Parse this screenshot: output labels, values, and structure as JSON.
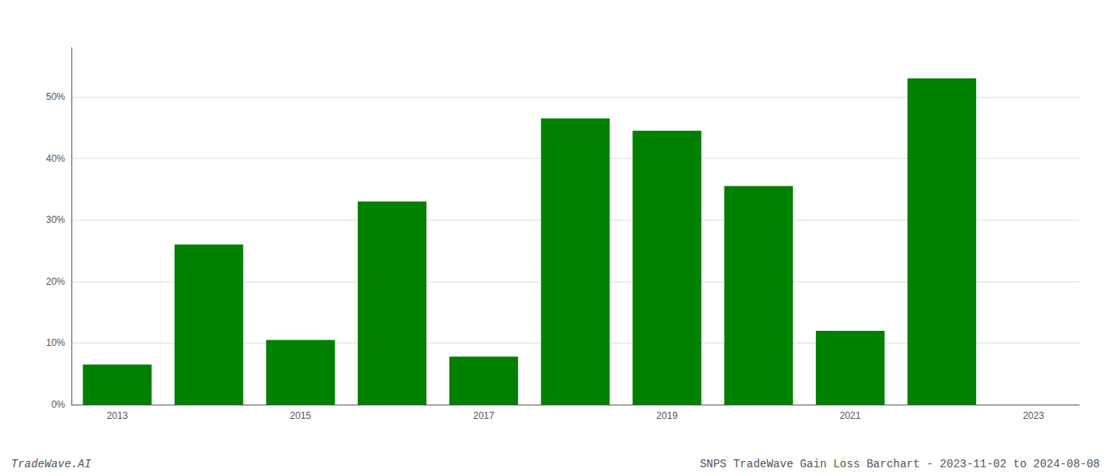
{
  "chart_data": {
    "type": "bar",
    "categories": [
      "2013",
      null,
      "2015",
      null,
      "2017",
      null,
      "2019",
      null,
      "2021",
      null,
      "2023"
    ],
    "values": [
      6.5,
      26.0,
      10.5,
      33.0,
      7.8,
      46.5,
      44.5,
      35.5,
      12.0,
      53.0,
      null
    ],
    "color": "#008000",
    "ylim": [
      0,
      58
    ],
    "yticks": [
      {
        "value": 0,
        "label": "0%"
      },
      {
        "value": 10,
        "label": "10%"
      },
      {
        "value": 20,
        "label": "20%"
      },
      {
        "value": 30,
        "label": "30%"
      },
      {
        "value": 40,
        "label": "40%"
      },
      {
        "value": 50,
        "label": "50%"
      }
    ],
    "grid": true,
    "annotations": [
      "TradeWave.AI",
      "SNPS TradeWave Gain Loss Barchart - 2023-11-02 to 2024-08-08"
    ]
  }
}
